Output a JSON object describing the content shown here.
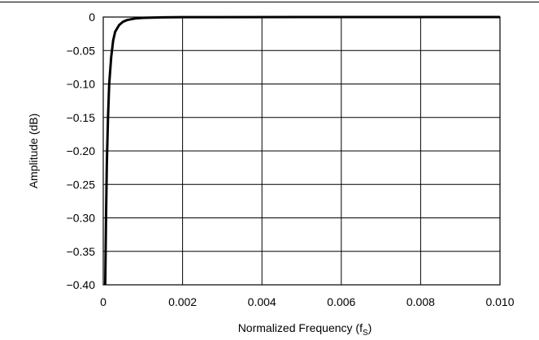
{
  "chart_data": {
    "type": "line",
    "title": "",
    "xlabel": "Normalized Frequency (f",
    "xlabel_sub": "S",
    "xlabel_close": ")",
    "ylabel": "Amplitude (dB)",
    "xlim": [
      0,
      0.01
    ],
    "ylim": [
      -0.4,
      0
    ],
    "xticks": [
      0,
      0.002,
      0.004,
      0.006,
      0.008,
      0.01
    ],
    "xtick_labels": [
      "0",
      "0.002",
      "0.004",
      "0.006",
      "0.008",
      "0.010"
    ],
    "yticks": [
      0,
      -0.05,
      -0.1,
      -0.15,
      -0.2,
      -0.25,
      -0.3,
      -0.35,
      -0.4
    ],
    "ytick_labels": [
      "0",
      "−0.05",
      "−0.10",
      "−0.15",
      "−0.20",
      "−0.25",
      "−0.30",
      "−0.35",
      "−0.40"
    ],
    "grid": true,
    "series": [
      {
        "x": [
          5e-05,
          7e-05,
          9e-05,
          0.00012,
          0.00015,
          0.0002,
          0.00025,
          0.0003,
          0.0004,
          0.0005,
          0.0006,
          0.0008,
          0.001,
          0.0015,
          0.002,
          0.003,
          0.005,
          0.007,
          0.01
        ],
        "y": [
          -0.4,
          -0.3,
          -0.22,
          -0.15,
          -0.1,
          -0.06,
          -0.035,
          -0.022,
          -0.012,
          -0.007,
          -0.0045,
          -0.0022,
          -0.0012,
          -0.0005,
          -0.0002,
          -0.0001,
          0,
          0,
          0
        ],
        "color": "#000000"
      }
    ]
  }
}
